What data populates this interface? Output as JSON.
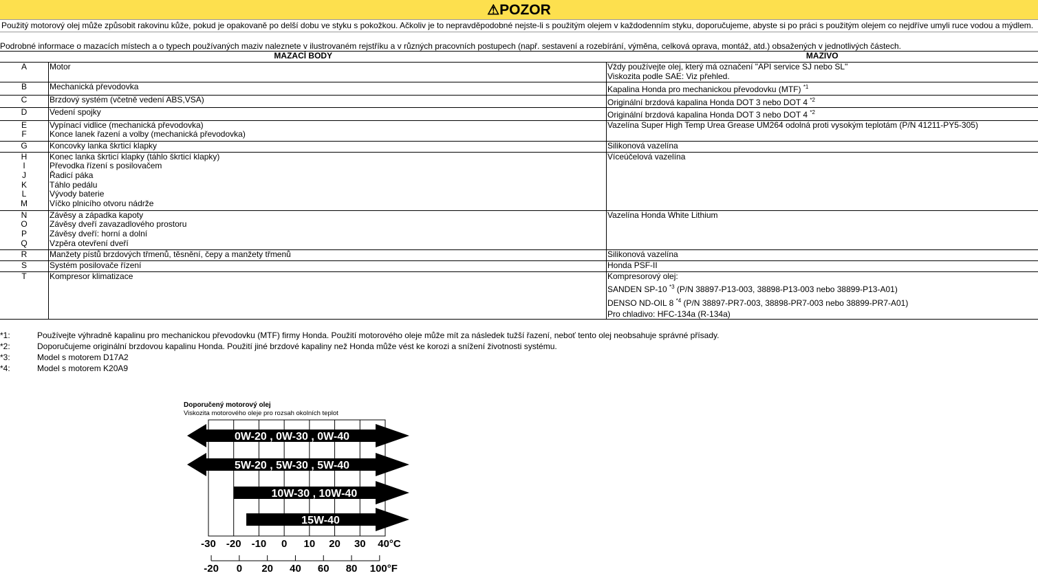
{
  "banner": {
    "icon": "warning-triangle-icon",
    "title": "POZOR"
  },
  "warning": "Použitý motorový olej může způsobit rakovinu kůže, pokud je opakovaně po delší dobu ve styku s pokožkou. Ačkoliv je to nepravděpodobné nejste-li s použitým olejem v každodenním styku, doporučujeme, abyste si po práci s použitým olejem co nejdříve umyli ruce vodou a mýdlem.",
  "intro": "Podrobné informace o mazacích místech a o typech používaných maziv naleznete v ilustrovaném rejstříku a v různých pracovních postupech (např. sestavení a rozebírání, výměna, celková oprava, montáž, atd.) obsažených v jednotlivých částech.",
  "table": {
    "headers": [
      "MAZACÍ BODY",
      "MAZIVO"
    ],
    "rows": [
      {
        "codes": [
          "A"
        ],
        "points": [
          "Motor"
        ],
        "lubricant": [
          {
            "t": "Vždy používejte olej, který má označení \"API service SJ nebo SL\""
          },
          {
            "t": "Viskozita podle SAE: Viz přehled."
          }
        ],
        "h": 29
      },
      {
        "codes": [
          "B"
        ],
        "points": [
          "Mechanická převodovka"
        ],
        "lubricant": [
          {
            "t": "Kapalina Honda pro mechanickou převodovku (MTF) ",
            "sup": "*1"
          }
        ],
        "h": 18
      },
      {
        "codes": [
          "C"
        ],
        "points": [
          "Brzdový systém (včetně vedení ABS,VSA)"
        ],
        "lubricant": [
          {
            "t": "Originální brzdová kapalina Honda DOT 3 nebo DOT 4 ",
            "sup": "*2"
          }
        ],
        "h": 18
      },
      {
        "codes": [
          "D"
        ],
        "points": [
          "Vedení spojky"
        ],
        "lubricant": [
          {
            "t": "Originální brzdová kapalina Honda DOT 3 nebo DOT 4 ",
            "sup": "*2"
          }
        ],
        "h": 17
      },
      {
        "codes": [
          "E",
          "F"
        ],
        "points": [
          "Vypínací vidlice (mechanická převodovka)",
          "Konce lanek řazení a volby (mechanická převodovka)"
        ],
        "lubricant": [
          {
            "t": "Vazelína Super High Temp Urea Grease UM264 odolná proti vysokým teplotám (P/N 41211-PY5-305)"
          }
        ],
        "h": 30
      },
      {
        "codes": [
          "G"
        ],
        "points": [
          "Koncovky lanka škrticí klapky"
        ],
        "lubricant": [
          {
            "t": "Silikonová vazelína"
          }
        ],
        "h": 16
      },
      {
        "codes": [
          "H",
          "I",
          "J",
          "K",
          "L",
          "M"
        ],
        "points": [
          "Konec lanka škrticí klapky (táhlo škrticí klapky)",
          "Převodka řízení s posilovačem",
          "Řadicí páka",
          "Táhlo pedálu",
          "Vývody baterie",
          "Víčko plnicího otvoru nádrže"
        ],
        "lubricant": [
          {
            "t": "Víceúčelová vazelína"
          }
        ],
        "h": 85
      },
      {
        "codes": [
          "N",
          "O",
          "P",
          "Q"
        ],
        "points": [
          "Závěsy a západka kapoty",
          "Závěsy dveří zavazadlového prostoru",
          "Závěsy dveří: horní a dolní",
          "Vzpěra otevření dveří"
        ],
        "lubricant": [
          {
            "t": "Vazelína Honda White Lithium"
          }
        ],
        "h": 57
      },
      {
        "codes": [
          "R"
        ],
        "points": [
          "Manžety pístů brzdových třmenů, těsnění, čepy a manžety třmenů"
        ],
        "lubricant": [
          {
            "t": "Silikonová vazelína"
          }
        ],
        "h": 16
      },
      {
        "codes": [
          "S"
        ],
        "points": [
          "Systém posilovače řízení"
        ],
        "lubricant": [
          {
            "t": "Honda PSF-II"
          }
        ],
        "h": 16
      },
      {
        "codes": [
          "T"
        ],
        "points": [
          "Kompresor klimatizace"
        ],
        "lubricant": [
          {
            "t": "Kompresorový olej:"
          },
          {
            "t": "SANDEN SP-10 ",
            "sup": "*3",
            "t2": " (P/N 38897-P13-003, 38898-P13-003 nebo 38899-P13-A01)"
          },
          {
            "t": "DENSO ND-OIL 8 ",
            "sup": "*4",
            "t2": " (P/N 38897-PR7-003, 38898-PR7-003 nebo 38899-PR7-A01)"
          },
          {
            "t": "Pro chladivo: HFC-134a (R-134a)"
          }
        ],
        "h": 61
      }
    ]
  },
  "notes": [
    {
      "mark": "*1:",
      "text": "Používejte výhradně kapalinu pro mechanickou převodovku (MTF) firmy Honda. Použití motorového oleje může mít za následek tužší řazení, neboť tento olej neobsahuje správné přísady."
    },
    {
      "mark": "*2:",
      "text": "Doporučujeme originální brzdovou kapalinu Honda. Použití jiné brzdové kapaliny než Honda může vést ke korozi a snížení životnosti systému."
    },
    {
      "mark": "*3:",
      "text": "Model s motorem D17A2"
    },
    {
      "mark": "*4:",
      "text": "Model s motorem K20A9"
    }
  ],
  "chart_data": {
    "type": "range-bar",
    "title": "Doporučený motorový olej",
    "subtitle": "Viskozita motorového oleje pro rozsah okolních teplot",
    "celsius_ticks": [
      "-30",
      "-20",
      "-10",
      "0",
      "10",
      "20",
      "30",
      "40°C"
    ],
    "fahrenheit_ticks": [
      "-20",
      "0",
      "20",
      "40",
      "60",
      "80",
      "100°F"
    ],
    "xlim_c": [
      -30,
      40
    ],
    "series": [
      {
        "label": "0W-20 , 0W-30 , 0W-40",
        "from_c": -30,
        "to_c": 40,
        "open_low": true,
        "open_high": true
      },
      {
        "label": "5W-20 , 5W-30 , 5W-40",
        "from_c": -30,
        "to_c": 40,
        "open_low": true,
        "open_high": true
      },
      {
        "label": "10W-30 , 10W-40",
        "from_c": -20,
        "to_c": 40,
        "open_low": false,
        "open_high": true
      },
      {
        "label": "15W-40",
        "from_c": -15,
        "to_c": 40,
        "open_low": false,
        "open_high": true
      }
    ]
  }
}
